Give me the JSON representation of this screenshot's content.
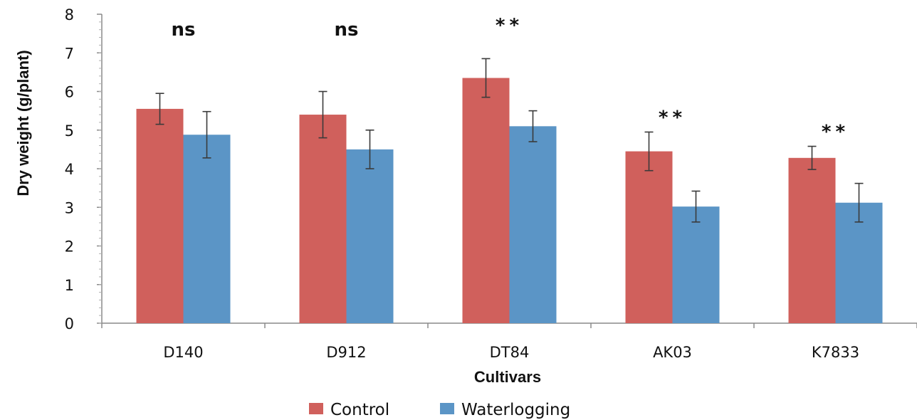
{
  "chart_data": {
    "type": "bar",
    "title": "",
    "xlabel": "Cultivars",
    "ylabel": "Dry weight (g/plant)",
    "ylim": [
      0,
      8
    ],
    "yticks": [
      "0",
      "1",
      "2",
      "3",
      "4",
      "5",
      "6",
      "7",
      "8"
    ],
    "categories": [
      "D140",
      "D912",
      "DT84",
      "AK03",
      "K7833"
    ],
    "series": [
      {
        "name": "Control",
        "color": "#d0605c",
        "values": [
          5.55,
          5.4,
          6.35,
          4.45,
          4.28
        ],
        "errors": [
          0.4,
          0.6,
          0.5,
          0.5,
          0.3
        ]
      },
      {
        "name": "Waterlogging",
        "color": "#5b95c6",
        "values": [
          4.88,
          4.5,
          5.1,
          3.02,
          3.12
        ],
        "errors": [
          0.6,
          0.5,
          0.4,
          0.4,
          0.5
        ]
      }
    ],
    "annotations": [
      "ns",
      "ns",
      "**",
      "**",
      "**"
    ],
    "legend_position": "bottom",
    "grid": false
  }
}
